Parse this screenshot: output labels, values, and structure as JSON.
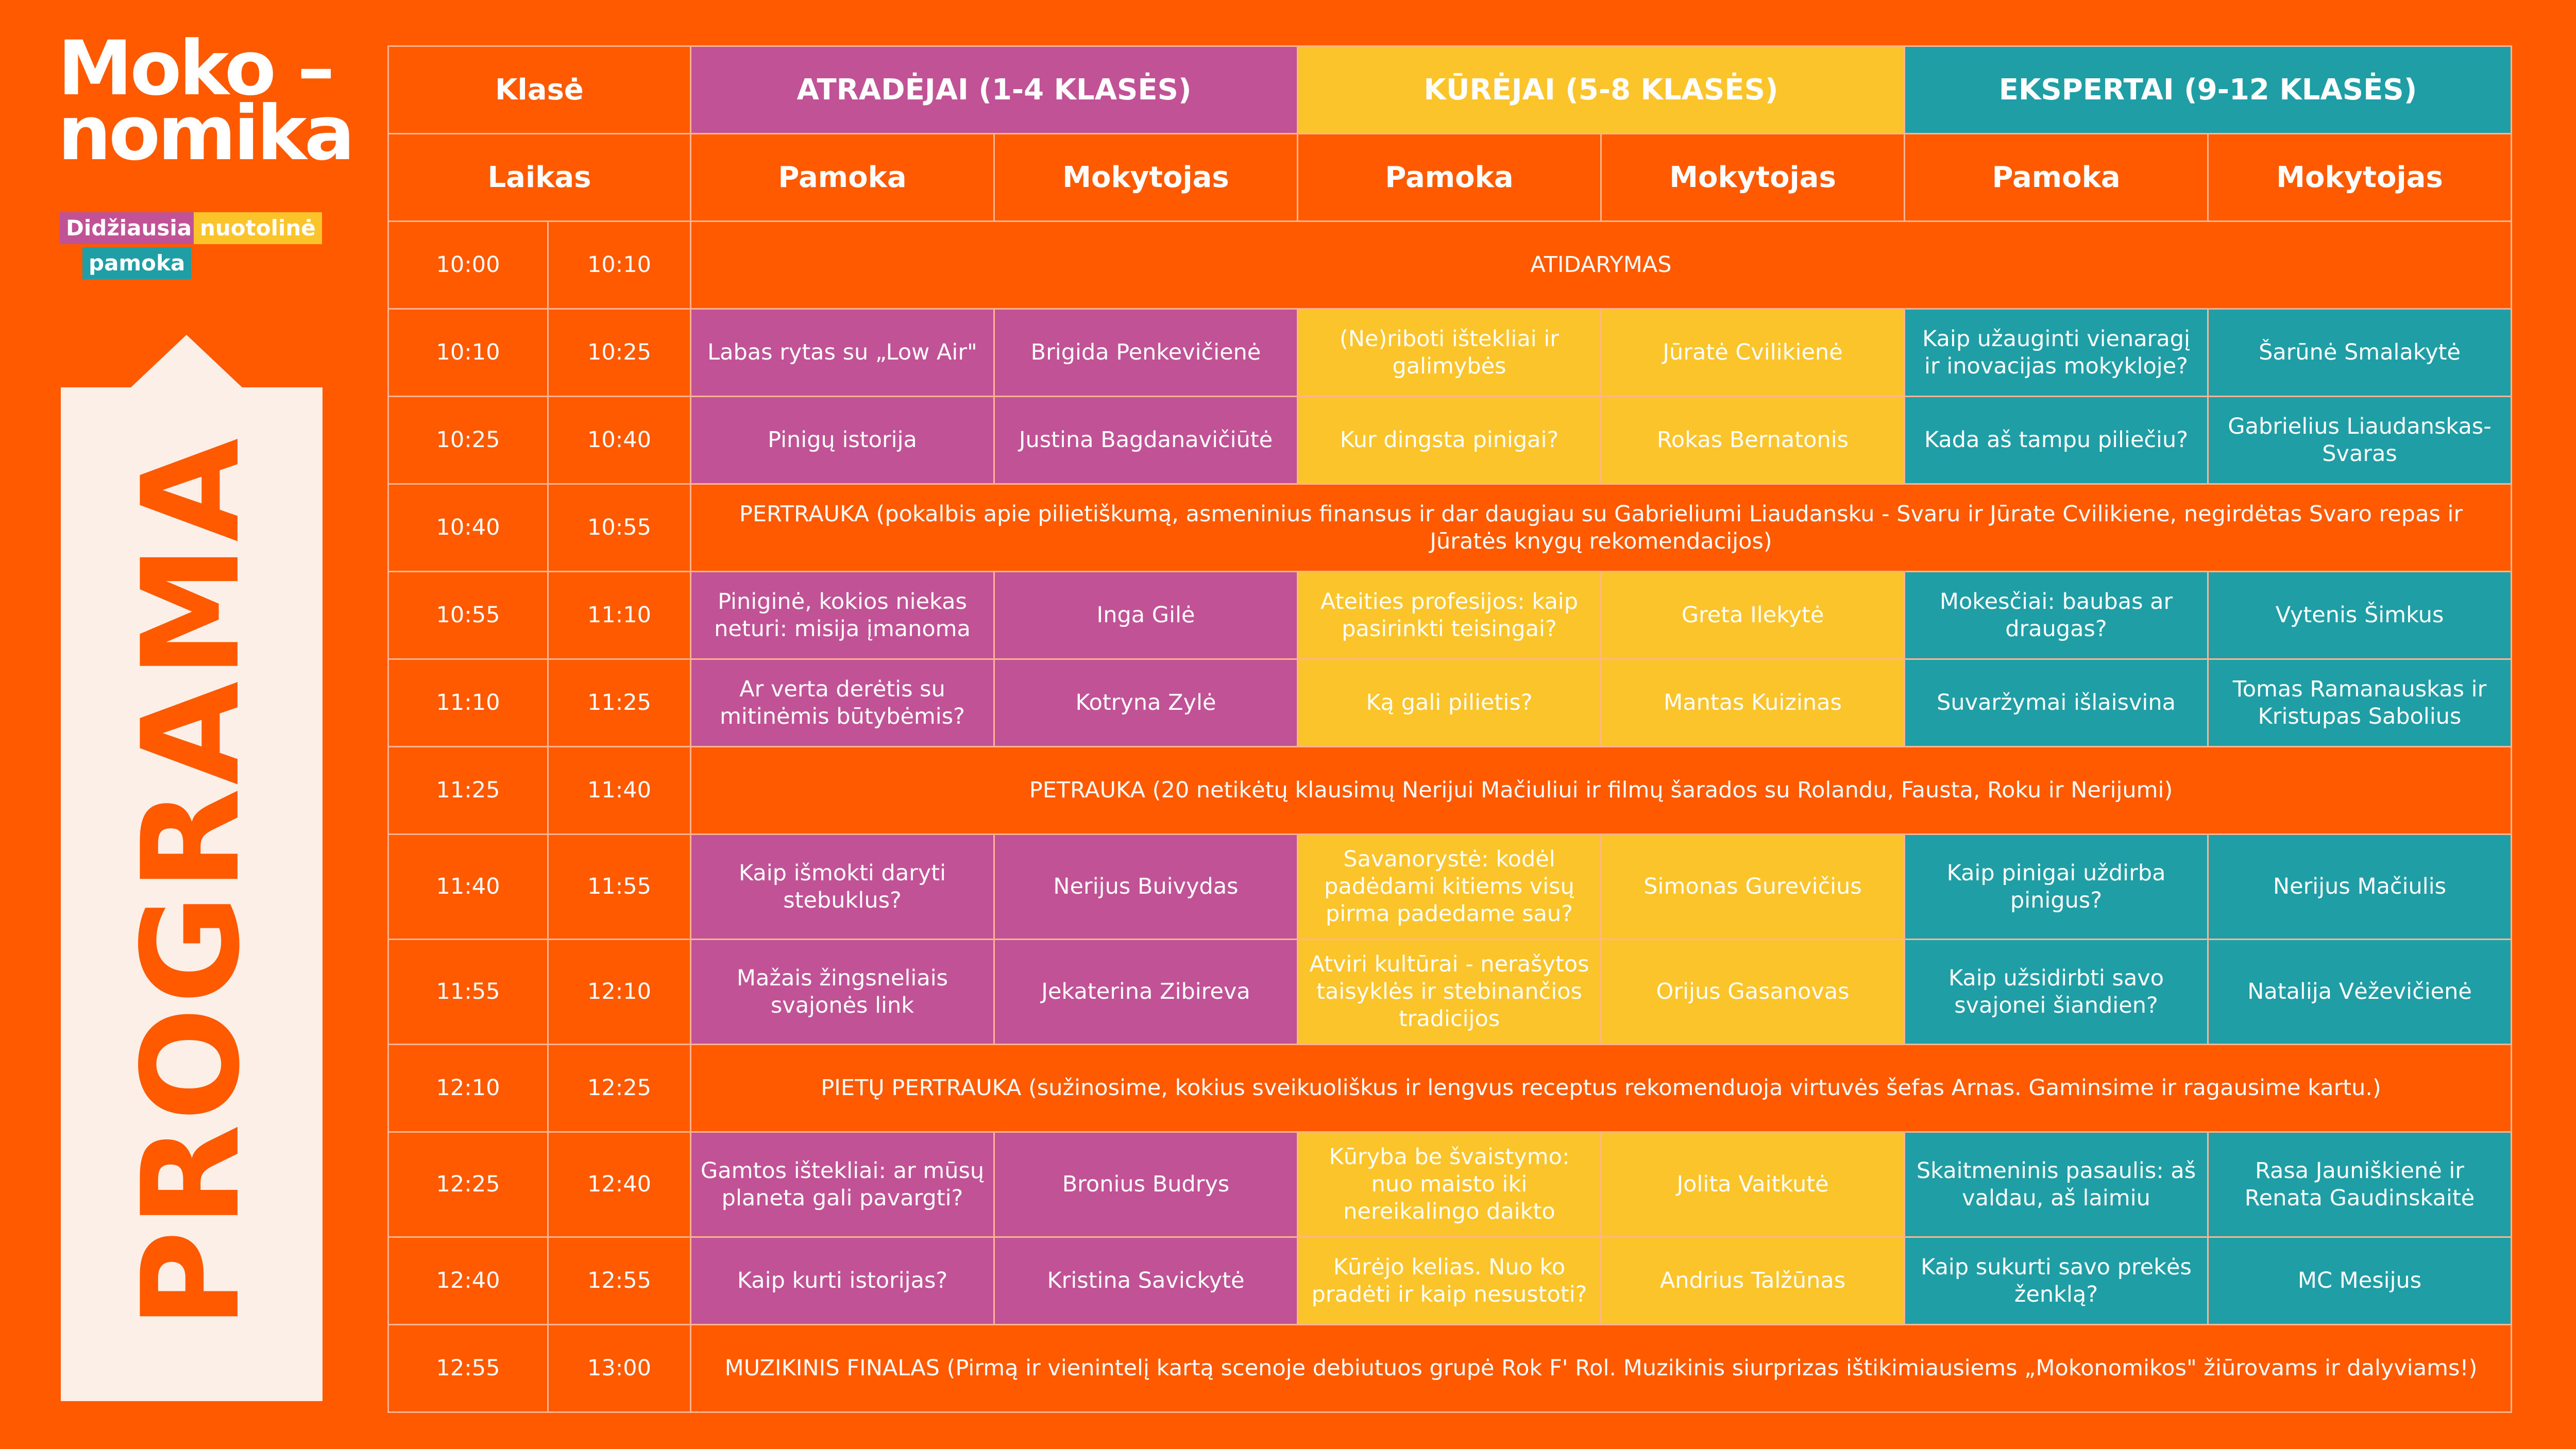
{
  "logo": {
    "line1": "Moko –",
    "line2": "nomika"
  },
  "tags": {
    "t1": "Didžiausia",
    "t2": "nuotolinė",
    "t3": "pamoka"
  },
  "side_title": "PROGRAMA",
  "header": {
    "klase": "Klasė",
    "laikas": "Laikas",
    "groups": [
      "ATRADĖJAI (1-4 KLASĖS)",
      "KŪRĖJAI (5-8 KLASĖS)",
      "EKSPERTAI (9-12 KLASĖS)"
    ],
    "pamoka": "Pamoka",
    "mokytojas": "Mokytojas"
  },
  "colors": {
    "orange": "#ff5a00",
    "pink": "#c25296",
    "yellow": "#fcc42b",
    "teal": "#1f9ea5",
    "cream": "#fbefe7"
  },
  "rows": [
    {
      "start": "10:00",
      "end": "10:10",
      "span": "ATIDARYMAS"
    },
    {
      "start": "10:10",
      "end": "10:25",
      "cells": [
        "Labas rytas su „Low Air\"",
        "Brigida Penkevičienė",
        "(Ne)riboti ištekliai ir galimybės",
        "Jūratė Cvilikienė",
        "Kaip užauginti vienaragį ir inovacijas mokykloje?",
        "Šarūnė Smalakytė"
      ]
    },
    {
      "start": "10:25",
      "end": "10:40",
      "cells": [
        "Pinigų istorija",
        "Justina Bagdanavičiūtė",
        "Kur dingsta pinigai?",
        "Rokas Bernatonis",
        "Kada aš tampu piliečiu?",
        "Gabrielius Liaudanskas-Svaras"
      ]
    },
    {
      "start": "10:40",
      "end": "10:55",
      "span": "PERTRAUKA (pokalbis apie pilietiškumą, asmeninius finansus ir dar daugiau su Gabrieliumi Liaudansku - Svaru ir Jūrate Cvilikiene, negirdėtas Svaro repas ir Jūratės knygų rekomendacijos)"
    },
    {
      "start": "10:55",
      "end": "11:10",
      "cells": [
        "Piniginė, kokios niekas neturi: misija įmanoma",
        "Inga Gilė",
        "Ateities profesijos: kaip pasirinkti teisingai?",
        "Greta Ilekytė",
        "Mokesčiai: baubas ar draugas?",
        "Vytenis Šimkus"
      ]
    },
    {
      "start": "11:10",
      "end": "11:25",
      "cells": [
        "Ar verta derėtis su mitinėmis būtybėmis?",
        "Kotryna Zylė",
        "Ką gali pilietis?",
        "Mantas Kuizinas",
        "Suvaržymai išlaisvina",
        "Tomas Ramanauskas ir Kristupas Sabolius"
      ]
    },
    {
      "start": "11:25",
      "end": "11:40",
      "span": "PETRAUKA (20 netikėtų klausimų Nerijui Mačiuliui ir filmų šarados su Rolandu, Fausta, Roku ir Nerijumi)"
    },
    {
      "start": "11:40",
      "end": "11:55",
      "cells": [
        "Kaip išmokti daryti stebuklus?",
        "Nerijus Buivydas",
        "Savanorystė: kodėl padėdami kitiems visų pirma padedame sau?",
        "Simonas Gurevičius",
        "Kaip pinigai uždirba pinigus?",
        "Nerijus Mačiulis"
      ]
    },
    {
      "start": "11:55",
      "end": "12:10",
      "cells": [
        "Mažais žingsneliais svajonės link",
        "Jekaterina Zibireva",
        "Atviri kultūrai - nerašytos taisyklės ir stebinančios tradicijos",
        "Orijus Gasanovas",
        "Kaip užsidirbti savo svajonei šiandien?",
        "Natalija Vėževičienė"
      ]
    },
    {
      "start": "12:10",
      "end": "12:25",
      "span": "PIETŲ PERTRAUKA (sužinosime, kokius sveikuoliškus ir lengvus receptus rekomenduoja virtuvės šefas Arnas. Gaminsime ir ragausime kartu.)"
    },
    {
      "start": "12:25",
      "end": "12:40",
      "cells": [
        "Gamtos ištekliai: ar mūsų planeta gali pavargti?",
        "Bronius Budrys",
        "Kūryba be švaistymo: nuo maisto iki nereikalingo daikto",
        "Jolita Vaitkutė",
        "Skaitmeninis pasaulis: aš valdau, aš laimiu",
        "Rasa Jauniškienė ir Renata Gaudinskaitė"
      ]
    },
    {
      "start": "12:40",
      "end": "12:55",
      "cells": [
        "Kaip kurti istorijas?",
        "Kristina Savickytė",
        "Kūrėjo kelias. Nuo ko pradėti ir kaip nesustoti?",
        "Andrius Talžūnas",
        "Kaip sukurti savo prekės ženklą?",
        "MC Mesijus"
      ]
    },
    {
      "start": "12:55",
      "end": "13:00",
      "span": "MUZIKINIS FINALAS (Pirmą ir vienintelį kartą scenoje debiutuos grupė Rok F' Rol. Muzikinis siurprizas ištikimiausiems „Mokonomikos\"  žiūrovams ir dalyviams!)"
    }
  ]
}
